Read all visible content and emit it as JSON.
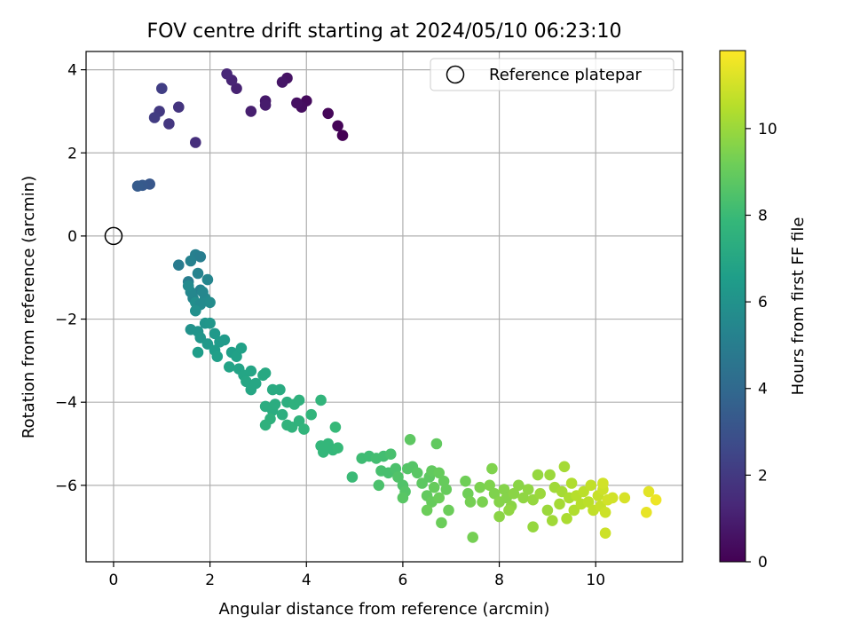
{
  "chart_data": {
    "type": "scatter",
    "title": "FOV centre drift starting at 2024/05/10 06:23:10",
    "xlabel": "Angular distance from reference (arcmin)",
    "ylabel": "Rotation from reference (arcmin)",
    "xlim": [
      -0.57,
      11.8
    ],
    "ylim": [
      -7.84,
      4.44
    ],
    "xticks": [
      0,
      2,
      4,
      6,
      8,
      10
    ],
    "yticks": [
      -6,
      -4,
      -2,
      0,
      2,
      4
    ],
    "grid": true,
    "legend": {
      "placement": "top-right",
      "entries": [
        "Reference platepar"
      ]
    },
    "reference_point": {
      "x": 0,
      "y": 0
    },
    "colorbar": {
      "label": "Hours from first FF file",
      "range": [
        0,
        11.8
      ],
      "ticks": [
        0,
        2,
        4,
        6,
        8,
        10
      ],
      "colormap": [
        "#440154",
        "#482878",
        "#3e4989",
        "#31688e",
        "#26828e",
        "#1f9e89",
        "#35b779",
        "#6ece58",
        "#b5de2b",
        "#fde725"
      ]
    },
    "points": [
      [
        4.75,
        2.42,
        0.0
      ],
      [
        4.65,
        2.65,
        0.1
      ],
      [
        4.45,
        2.95,
        0.2
      ],
      [
        4.0,
        3.25,
        0.3
      ],
      [
        3.9,
        3.1,
        0.4
      ],
      [
        3.8,
        3.2,
        0.5
      ],
      [
        3.6,
        3.8,
        0.6
      ],
      [
        3.5,
        3.7,
        0.7
      ],
      [
        3.15,
        3.25,
        0.8
      ],
      [
        3.15,
        3.15,
        0.9
      ],
      [
        2.85,
        3.0,
        1.0
      ],
      [
        2.55,
        3.55,
        1.1
      ],
      [
        2.45,
        3.75,
        1.2
      ],
      [
        2.35,
        3.9,
        1.3
      ],
      [
        1.7,
        2.25,
        1.6
      ],
      [
        1.35,
        3.1,
        1.8
      ],
      [
        1.15,
        2.7,
        1.9
      ],
      [
        0.95,
        3.0,
        2.0
      ],
      [
        0.85,
        2.85,
        2.1
      ],
      [
        1.0,
        3.55,
        2.2
      ],
      [
        0.75,
        1.25,
        3.2
      ],
      [
        0.6,
        1.22,
        3.3
      ],
      [
        0.5,
        1.2,
        3.4
      ],
      [
        1.35,
        -0.7,
        4.9
      ],
      [
        1.55,
        -1.1,
        5.0
      ],
      [
        1.7,
        -0.45,
        5.1
      ],
      [
        1.8,
        -0.5,
        5.0
      ],
      [
        1.6,
        -0.6,
        5.2
      ],
      [
        1.75,
        -0.9,
        5.3
      ],
      [
        1.8,
        -1.3,
        5.2
      ],
      [
        1.65,
        -1.5,
        5.4
      ],
      [
        1.6,
        -1.35,
        5.5
      ],
      [
        1.9,
        -1.5,
        5.6
      ],
      [
        1.95,
        -1.05,
        5.4
      ],
      [
        2.0,
        -1.6,
        5.7
      ],
      [
        1.7,
        -1.6,
        5.8
      ],
      [
        1.8,
        -1.65,
        5.6
      ],
      [
        1.85,
        -1.35,
        5.5
      ],
      [
        1.55,
        -1.2,
        5.6
      ],
      [
        1.7,
        -1.8,
        5.9
      ],
      [
        1.6,
        -2.25,
        6.0
      ],
      [
        1.75,
        -2.3,
        6.1
      ],
      [
        1.9,
        -2.1,
        6.1
      ],
      [
        2.0,
        -2.1,
        6.2
      ],
      [
        1.8,
        -2.45,
        6.2
      ],
      [
        2.1,
        -2.35,
        6.3
      ],
      [
        1.95,
        -2.6,
        6.3
      ],
      [
        2.2,
        -2.55,
        6.4
      ],
      [
        2.3,
        -2.5,
        6.4
      ],
      [
        2.1,
        -2.75,
        6.5
      ],
      [
        1.75,
        -2.8,
        6.5
      ],
      [
        2.15,
        -2.9,
        6.6
      ],
      [
        2.45,
        -2.8,
        6.6
      ],
      [
        2.55,
        -2.9,
        6.7
      ],
      [
        2.65,
        -2.7,
        6.7
      ],
      [
        2.4,
        -3.15,
        6.8
      ],
      [
        2.6,
        -3.2,
        6.8
      ],
      [
        2.7,
        -3.35,
        6.9
      ],
      [
        2.75,
        -3.5,
        7.0
      ],
      [
        2.85,
        -3.7,
        7.0
      ],
      [
        2.95,
        -3.55,
        7.0
      ],
      [
        2.85,
        -3.25,
        6.9
      ],
      [
        3.1,
        -3.35,
        7.1
      ],
      [
        3.15,
        -3.3,
        7.1
      ],
      [
        3.3,
        -3.7,
        7.2
      ],
      [
        3.45,
        -3.7,
        7.2
      ],
      [
        3.15,
        -4.1,
        7.3
      ],
      [
        3.3,
        -4.2,
        7.3
      ],
      [
        3.35,
        -4.05,
        7.3
      ],
      [
        3.5,
        -4.3,
        7.4
      ],
      [
        3.6,
        -4.0,
        7.4
      ],
      [
        3.75,
        -4.05,
        7.5
      ],
      [
        3.85,
        -3.95,
        7.5
      ],
      [
        3.25,
        -4.4,
        7.5
      ],
      [
        3.15,
        -4.55,
        7.5
      ],
      [
        3.6,
        -4.55,
        7.6
      ],
      [
        3.7,
        -4.6,
        7.6
      ],
      [
        3.85,
        -4.45,
        7.6
      ],
      [
        3.95,
        -4.65,
        7.7
      ],
      [
        4.1,
        -4.3,
        7.7
      ],
      [
        4.3,
        -3.95,
        7.7
      ],
      [
        4.3,
        -5.05,
        7.8
      ],
      [
        4.35,
        -5.2,
        7.8
      ],
      [
        4.45,
        -5.0,
        7.8
      ],
      [
        4.55,
        -5.15,
        7.8
      ],
      [
        4.65,
        -5.1,
        7.9
      ],
      [
        4.6,
        -4.6,
        7.9
      ],
      [
        4.95,
        -5.8,
        8.0
      ],
      [
        5.15,
        -5.35,
        8.1
      ],
      [
        5.3,
        -5.3,
        8.1
      ],
      [
        5.45,
        -5.35,
        8.2
      ],
      [
        5.6,
        -5.3,
        8.2
      ],
      [
        5.75,
        -5.25,
        8.3
      ],
      [
        5.55,
        -5.65,
        8.3
      ],
      [
        5.7,
        -5.7,
        8.3
      ],
      [
        5.85,
        -5.6,
        8.4
      ],
      [
        5.5,
        -6.0,
        8.4
      ],
      [
        5.9,
        -5.8,
        8.5
      ],
      [
        6.0,
        -6.0,
        8.5
      ],
      [
        6.05,
        -6.15,
        8.6
      ],
      [
        6.1,
        -5.6,
        8.6
      ],
      [
        6.2,
        -5.55,
        8.6
      ],
      [
        6.0,
        -6.3,
        8.7
      ],
      [
        6.3,
        -5.7,
        8.7
      ],
      [
        6.4,
        -5.95,
        8.8
      ],
      [
        6.15,
        -4.9,
        8.8
      ],
      [
        6.55,
        -5.8,
        8.8
      ],
      [
        6.5,
        -6.25,
        8.9
      ],
      [
        6.6,
        -5.65,
        8.9
      ],
      [
        6.7,
        -5.0,
        8.9
      ],
      [
        6.65,
        -6.05,
        9.0
      ],
      [
        6.75,
        -5.7,
        9.0
      ],
      [
        6.85,
        -5.9,
        9.0
      ],
      [
        6.9,
        -6.1,
        9.0
      ],
      [
        6.6,
        -6.4,
        9.0
      ],
      [
        6.5,
        -6.6,
        9.1
      ],
      [
        6.8,
        -6.9,
        9.1
      ],
      [
        6.95,
        -6.6,
        9.1
      ],
      [
        6.75,
        -6.3,
        9.1
      ],
      [
        7.3,
        -5.9,
        9.2
      ],
      [
        7.35,
        -6.2,
        9.2
      ],
      [
        7.4,
        -6.4,
        9.3
      ],
      [
        7.45,
        -7.25,
        9.3
      ],
      [
        7.6,
        -6.05,
        9.4
      ],
      [
        7.65,
        -6.4,
        9.4
      ],
      [
        7.8,
        -6.0,
        9.5
      ],
      [
        7.85,
        -5.6,
        9.5
      ],
      [
        7.9,
        -6.2,
        9.5
      ],
      [
        8.0,
        -6.4,
        9.6
      ],
      [
        8.1,
        -6.1,
        9.6
      ],
      [
        8.15,
        -6.3,
        9.6
      ],
      [
        8.25,
        -6.5,
        9.7
      ],
      [
        8.3,
        -6.2,
        9.7
      ],
      [
        8.4,
        -6.0,
        9.7
      ],
      [
        8.0,
        -6.75,
        9.7
      ],
      [
        8.2,
        -6.6,
        9.8
      ],
      [
        8.5,
        -6.3,
        9.8
      ],
      [
        8.6,
        -6.1,
        9.8
      ],
      [
        8.7,
        -6.35,
        9.9
      ],
      [
        8.7,
        -7.0,
        9.9
      ],
      [
        8.8,
        -5.75,
        9.9
      ],
      [
        8.85,
        -6.2,
        10.0
      ],
      [
        9.0,
        -6.6,
        10.0
      ],
      [
        9.05,
        -5.75,
        10.0
      ],
      [
        9.15,
        -6.05,
        10.1
      ],
      [
        9.1,
        -6.85,
        10.1
      ],
      [
        9.25,
        -6.45,
        10.2
      ],
      [
        9.3,
        -6.15,
        10.2
      ],
      [
        9.35,
        -5.55,
        10.2
      ],
      [
        9.4,
        -6.8,
        10.3
      ],
      [
        9.45,
        -6.3,
        10.3
      ],
      [
        9.5,
        -5.95,
        10.4
      ],
      [
        9.55,
        -6.6,
        10.4
      ],
      [
        9.6,
        -6.25,
        10.5
      ],
      [
        9.7,
        -6.45,
        10.5
      ],
      [
        9.75,
        -6.15,
        10.6
      ],
      [
        9.85,
        -6.4,
        10.6
      ],
      [
        9.9,
        -6.0,
        10.7
      ],
      [
        9.95,
        -6.6,
        10.7
      ],
      [
        10.05,
        -6.25,
        10.8
      ],
      [
        10.1,
        -6.5,
        10.8
      ],
      [
        10.15,
        -6.1,
        10.9
      ],
      [
        10.2,
        -6.65,
        10.9
      ],
      [
        10.2,
        -7.15,
        10.9
      ],
      [
        10.25,
        -6.35,
        11.0
      ],
      [
        10.35,
        -6.3,
        11.0
      ],
      [
        10.15,
        -5.95,
        11.0
      ],
      [
        10.6,
        -6.3,
        11.1
      ],
      [
        11.1,
        -6.15,
        11.3
      ],
      [
        11.05,
        -6.65,
        11.4
      ],
      [
        11.25,
        -6.35,
        11.5
      ]
    ]
  }
}
